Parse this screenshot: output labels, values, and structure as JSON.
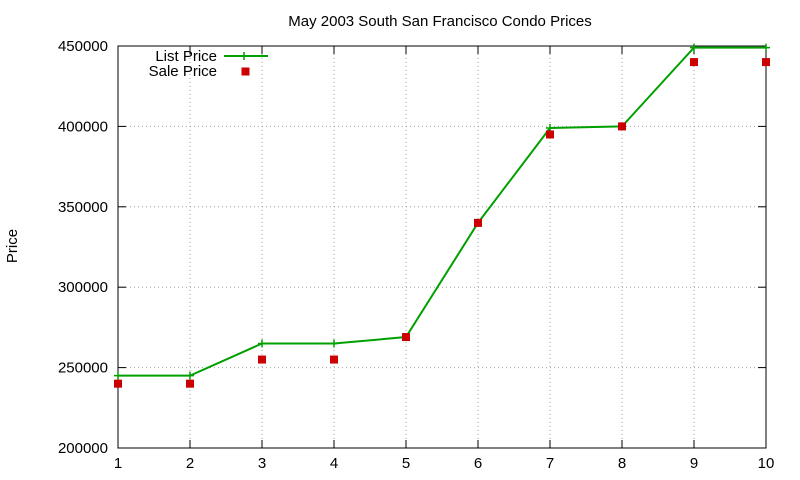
{
  "chart_data": {
    "type": "line",
    "title": "May 2003 South San Francisco Condo Prices",
    "xlabel": "",
    "ylabel": "Price",
    "x": [
      1,
      2,
      3,
      4,
      5,
      6,
      7,
      8,
      9,
      10
    ],
    "xlim": [
      1,
      10
    ],
    "ylim": [
      200000,
      450000
    ],
    "xticks": [
      "1",
      "2",
      "3",
      "4",
      "5",
      "6",
      "7",
      "8",
      "9",
      "10"
    ],
    "yticks": [
      "200000",
      "250000",
      "300000",
      "350000",
      "400000",
      "450000"
    ],
    "grid": true,
    "legend_position": "top-left",
    "series": [
      {
        "name": "List Price",
        "style": "line-with-plus-markers",
        "color": "#00a000",
        "values": [
          245000,
          245000,
          265000,
          265000,
          269000,
          340000,
          399000,
          400000,
          449000,
          449000
        ]
      },
      {
        "name": "Sale Price",
        "style": "square-markers",
        "color": "#cc0000",
        "values": [
          240000,
          240000,
          255000,
          255000,
          269000,
          340000,
          395000,
          400000,
          440000,
          440000
        ]
      }
    ]
  }
}
